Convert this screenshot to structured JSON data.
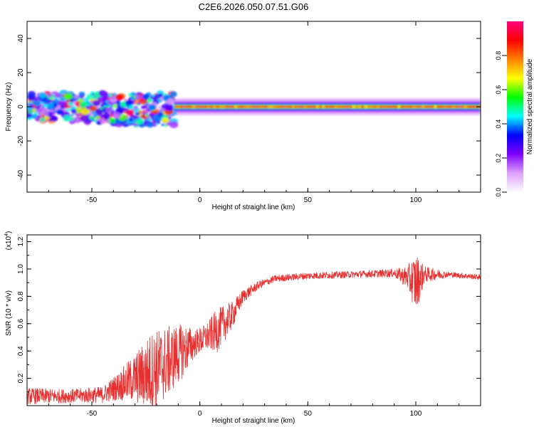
{
  "title": "C2E6.2026.050.07.51.G06",
  "chart_data": [
    {
      "type": "heatmap",
      "xlabel": "Height of straight line (km)",
      "ylabel": "Frequency (Hz)",
      "xlim": [
        -80,
        130
      ],
      "ylim": [
        -50,
        50
      ],
      "xticks": [
        -50,
        0,
        50,
        100
      ],
      "yticks": [
        -40,
        -20,
        0,
        20,
        40
      ],
      "colorbar": {
        "label": "Normalized spectral amplitude",
        "range": [
          0.0,
          1.0
        ],
        "ticks": [
          "0.0",
          "0.2",
          "0.4",
          "0.6",
          "0.8"
        ],
        "colors": [
          "#ffffff",
          "#dda0ff",
          "#8000ff",
          "#0000ff",
          "#00ffff",
          "#00ff00",
          "#ffff00",
          "#ff8000",
          "#ff0000",
          "#ff0080"
        ]
      },
      "features": {
        "scattered_band": {
          "x_range": [
            -80,
            -12
          ],
          "freq_range": [
            -12,
            8
          ]
        },
        "narrow_band": {
          "x_range": [
            -12,
            130
          ],
          "freq_half_width": 3,
          "peak_freq": 0
        }
      }
    },
    {
      "type": "line",
      "xlabel": "Height of straight line (km)",
      "ylabel": "SNR (10 * v/v)",
      "scale_label": "(x10",
      "scale_exponent": "4",
      ")": "",
      "scale_close": ")",
      "xlim": [
        -80,
        130
      ],
      "ylim": [
        0,
        1.25
      ],
      "xticks": [
        -50,
        0,
        50,
        100
      ],
      "yticks": [
        "0.2",
        "0.4",
        "0.6",
        "0.8",
        "1.0",
        "1.2"
      ],
      "color": "#e83030",
      "envelope": {
        "x": [
          -80,
          -60,
          -45,
          -38,
          -30,
          -22,
          -15,
          -8,
          -2,
          3,
          8,
          15,
          20,
          27,
          35,
          50,
          70,
          90,
          96,
          100,
          104,
          115,
          130
        ],
        "base": [
          0.07,
          0.07,
          0.08,
          0.14,
          0.2,
          0.25,
          0.32,
          0.4,
          0.46,
          0.5,
          0.55,
          0.66,
          0.8,
          0.88,
          0.93,
          0.95,
          0.96,
          0.97,
          0.94,
          0.9,
          0.96,
          0.96,
          0.94
        ],
        "amp": [
          0.06,
          0.05,
          0.06,
          0.1,
          0.18,
          0.3,
          0.26,
          0.2,
          0.1,
          0.1,
          0.16,
          0.1,
          0.05,
          0.03,
          0.025,
          0.025,
          0.025,
          0.03,
          0.08,
          0.22,
          0.06,
          0.02,
          0.02
        ]
      }
    }
  ]
}
